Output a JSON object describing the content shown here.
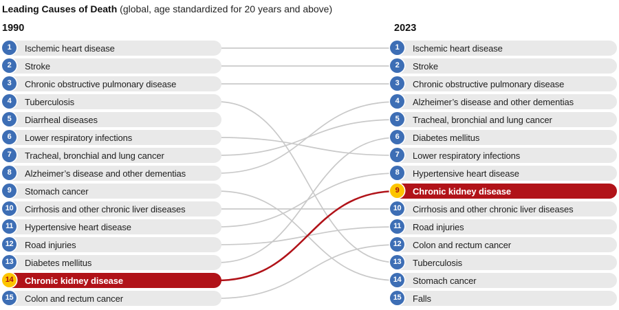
{
  "title": {
    "main": "Leading Causes of Death",
    "qualifier": "(global, age standardized for 20 years and above)"
  },
  "chart_data": {
    "type": "table",
    "title": "Leading Causes of Death (global, age standardized for 20 years and above)",
    "columns": [
      "Rank",
      "1990",
      "2023"
    ],
    "left_year": "1990",
    "right_year": "2023",
    "left_ranking": [
      "Ischemic heart disease",
      "Stroke",
      "Chronic obstructive pulmonary disease",
      "Tuberculosis",
      "Diarrheal diseases",
      "Lower respiratory infections",
      "Tracheal, bronchial and lung cancer",
      "Alzheimer’s disease and other dementias",
      "Stomach cancer",
      "Cirrhosis and other chronic liver diseases",
      "Hypertensive heart disease",
      "Road injuries",
      "Diabetes mellitus",
      "Chronic kidney disease",
      "Colon and rectum cancer"
    ],
    "right_ranking": [
      "Ischemic heart disease",
      "Stroke",
      "Chronic obstructive pulmonary disease",
      "Alzheimer’s disease and other dementias",
      "Tracheal, bronchial and lung cancer",
      "Diabetes mellitus",
      "Lower respiratory infections",
      "Hypertensive heart disease",
      "Chronic kidney disease",
      "Cirrhosis and other chronic liver diseases",
      "Road injuries",
      "Colon and rectum cancer",
      "Tuberculosis",
      "Stomach cancer",
      "Falls"
    ],
    "highlighted_cause": "Chronic kidney disease",
    "highlight_move": {
      "from_rank_1990": 14,
      "to_rank_2023": 9
    }
  },
  "columns": {
    "left": {
      "year": "1990",
      "items": [
        {
          "rank": "1",
          "label": "Ischemic heart disease",
          "highlight": false
        },
        {
          "rank": "2",
          "label": "Stroke",
          "highlight": false
        },
        {
          "rank": "3",
          "label": "Chronic obstructive pulmonary disease",
          "highlight": false
        },
        {
          "rank": "4",
          "label": "Tuberculosis",
          "highlight": false
        },
        {
          "rank": "5",
          "label": "Diarrheal diseases",
          "highlight": false
        },
        {
          "rank": "6",
          "label": "Lower respiratory infections",
          "highlight": false
        },
        {
          "rank": "7",
          "label": "Tracheal, bronchial and lung cancer",
          "highlight": false
        },
        {
          "rank": "8",
          "label": "Alzheimer’s disease and other dementias",
          "highlight": false
        },
        {
          "rank": "9",
          "label": "Stomach cancer",
          "highlight": false
        },
        {
          "rank": "10",
          "label": "Cirrhosis and other chronic liver diseases",
          "highlight": false
        },
        {
          "rank": "11",
          "label": "Hypertensive heart disease",
          "highlight": false
        },
        {
          "rank": "12",
          "label": "Road injuries",
          "highlight": false
        },
        {
          "rank": "13",
          "label": "Diabetes mellitus",
          "highlight": false
        },
        {
          "rank": "14",
          "label": "Chronic kidney disease",
          "highlight": true
        },
        {
          "rank": "15",
          "label": "Colon and rectum cancer",
          "highlight": false
        }
      ]
    },
    "right": {
      "year": "2023",
      "items": [
        {
          "rank": "1",
          "label": "Ischemic heart disease",
          "highlight": false
        },
        {
          "rank": "2",
          "label": "Stroke",
          "highlight": false
        },
        {
          "rank": "3",
          "label": "Chronic obstructive pulmonary disease",
          "highlight": false
        },
        {
          "rank": "4",
          "label": "Alzheimer’s disease and other dementias",
          "highlight": false
        },
        {
          "rank": "5",
          "label": "Tracheal, bronchial and lung cancer",
          "highlight": false
        },
        {
          "rank": "6",
          "label": "Diabetes mellitus",
          "highlight": false
        },
        {
          "rank": "7",
          "label": "Lower respiratory infections",
          "highlight": false
        },
        {
          "rank": "8",
          "label": "Hypertensive heart disease",
          "highlight": false
        },
        {
          "rank": "9",
          "label": "Chronic kidney disease",
          "highlight": true
        },
        {
          "rank": "10",
          "label": "Cirrhosis and other chronic liver diseases",
          "highlight": false
        },
        {
          "rank": "11",
          "label": "Road injuries",
          "highlight": false
        },
        {
          "rank": "12",
          "label": "Colon and rectum cancer",
          "highlight": false
        },
        {
          "rank": "13",
          "label": "Tuberculosis",
          "highlight": false
        },
        {
          "rank": "14",
          "label": "Stomach cancer",
          "highlight": false
        },
        {
          "rank": "15",
          "label": "Falls",
          "highlight": false
        }
      ]
    }
  },
  "links": [
    {
      "from_rank": 1,
      "to_rank": 1,
      "highlight": false
    },
    {
      "from_rank": 2,
      "to_rank": 2,
      "highlight": false
    },
    {
      "from_rank": 3,
      "to_rank": 3,
      "highlight": false
    },
    {
      "from_rank": 4,
      "to_rank": 13,
      "highlight": false
    },
    {
      "from_rank": 6,
      "to_rank": 7,
      "highlight": false
    },
    {
      "from_rank": 7,
      "to_rank": 5,
      "highlight": false
    },
    {
      "from_rank": 8,
      "to_rank": 4,
      "highlight": false
    },
    {
      "from_rank": 9,
      "to_rank": 14,
      "highlight": false
    },
    {
      "from_rank": 10,
      "to_rank": 10,
      "highlight": false
    },
    {
      "from_rank": 11,
      "to_rank": 8,
      "highlight": false
    },
    {
      "from_rank": 12,
      "to_rank": 11,
      "highlight": false
    },
    {
      "from_rank": 13,
      "to_rank": 6,
      "highlight": false
    },
    {
      "from_rank": 15,
      "to_rank": 12,
      "highlight": false
    },
    {
      "from_rank": 14,
      "to_rank": 9,
      "highlight": true
    }
  ],
  "colors": {
    "badge_blue": "#3d6eb5",
    "badge_text": "#ffffff",
    "pill_gray": "#e9e9e9",
    "highlight_red": "#b11319",
    "highlight_yellow": "#fdc500",
    "highlight_number": "#a50e14",
    "line_gray": "#c9c9c9",
    "text_dark": "#1d1d1d"
  }
}
